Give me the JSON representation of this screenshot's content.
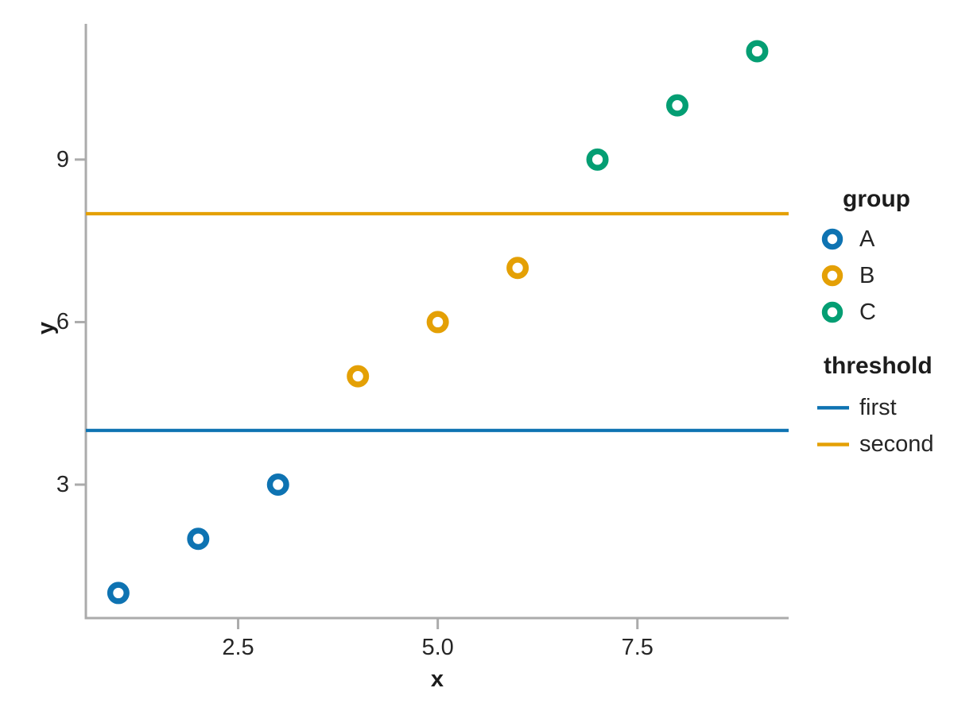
{
  "chart_data": {
    "type": "scatter",
    "title": "",
    "xlabel": "x",
    "ylabel": "y",
    "xlim": [
      0.593,
      9.394
    ],
    "ylim": [
      0.537,
      11.505
    ],
    "grid": false,
    "background": "#ffffff",
    "axis_color": "#ababab",
    "text_color": "#262626",
    "x_ticks": {
      "values": [
        2.5,
        5.0,
        7.5
      ],
      "labels": [
        "2.5",
        "5.0",
        "7.5"
      ]
    },
    "y_ticks": {
      "values": [
        3,
        6,
        9
      ],
      "labels": [
        "3",
        "6",
        "9"
      ]
    },
    "series": [
      {
        "name": "A",
        "color": "#0e73b2",
        "marker": "open-circle",
        "points": [
          [
            1,
            1
          ],
          [
            2,
            2
          ],
          [
            3,
            3
          ]
        ]
      },
      {
        "name": "B",
        "color": "#e4a005",
        "marker": "open-circle",
        "points": [
          [
            4,
            5
          ],
          [
            5,
            6
          ],
          [
            6,
            7
          ]
        ]
      },
      {
        "name": "C",
        "color": "#049e73",
        "marker": "open-circle",
        "points": [
          [
            7,
            9
          ],
          [
            8,
            10
          ],
          [
            9,
            11
          ]
        ]
      }
    ],
    "thresholds": [
      {
        "name": "first",
        "color": "#0e73b2",
        "y": 4
      },
      {
        "name": "second",
        "color": "#e4a005",
        "y": 8
      }
    ],
    "legend": {
      "position": "right",
      "group_title": "group",
      "group_items": [
        "A",
        "B",
        "C"
      ],
      "threshold_title": "threshold",
      "threshold_items": [
        "first",
        "second"
      ]
    }
  }
}
